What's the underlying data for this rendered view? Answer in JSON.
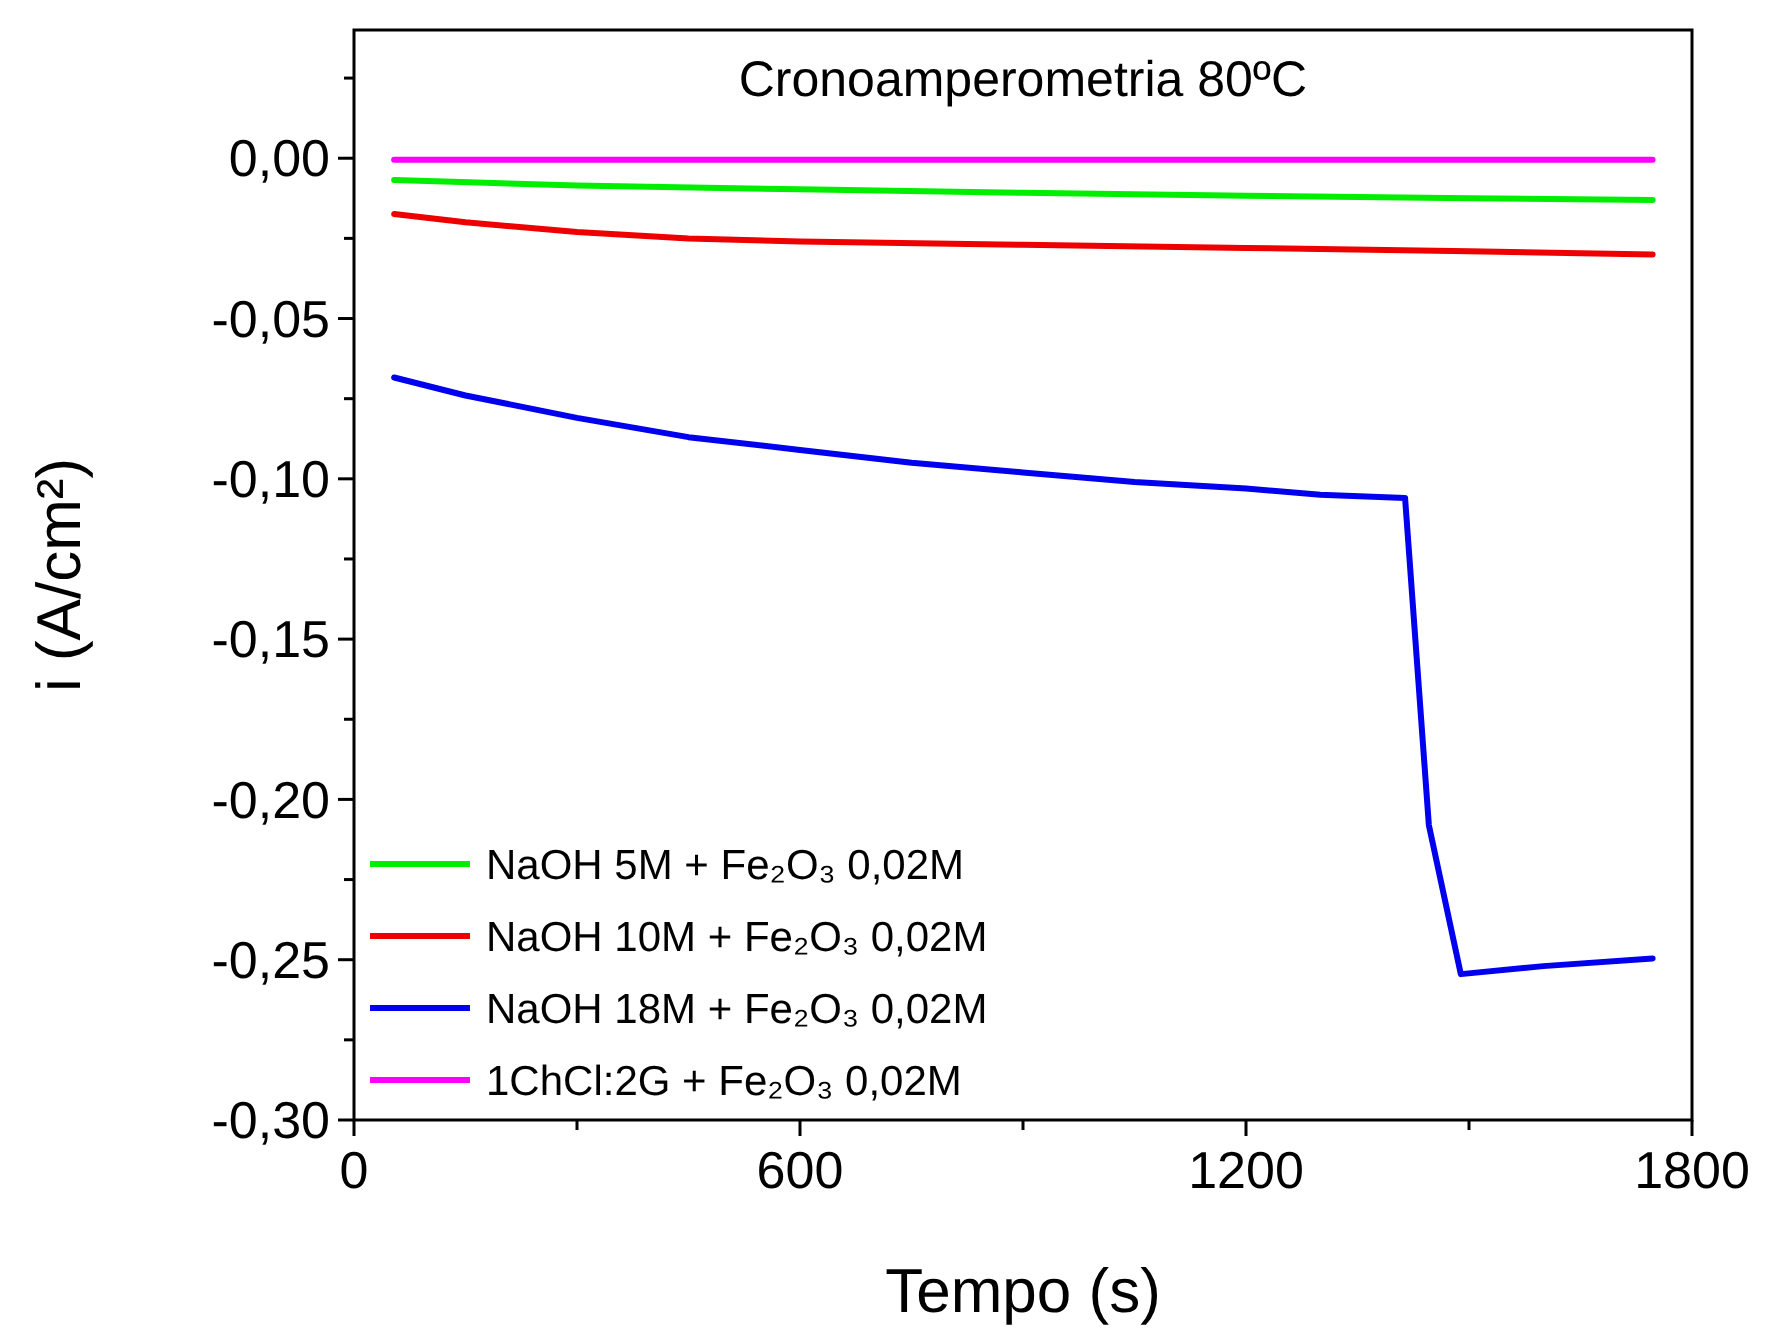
{
  "chart_data": {
    "type": "line",
    "title": "Cronoamperometria 80ºC",
    "xlabel": "Tempo (s)",
    "ylabel": "i (A/cm²)",
    "xlim": [
      0,
      1800
    ],
    "xticks": [
      0,
      600,
      1200,
      1800
    ],
    "ylim": [
      -0.3,
      0.04
    ],
    "yticks": [
      {
        "value": -0.3,
        "label": "-0,30"
      },
      {
        "value": -0.25,
        "label": "-0,25"
      },
      {
        "value": -0.2,
        "label": "-0,20"
      },
      {
        "value": -0.15,
        "label": "-0,15"
      },
      {
        "value": -0.1,
        "label": "-0,10"
      },
      {
        "value": -0.05,
        "label": "-0,05"
      },
      {
        "value": 0,
        "label": "0,00"
      }
    ],
    "grid": false,
    "legend": "bottom left",
    "line_style": "solid",
    "series": [
      {
        "name": "NaOH 5M + Fe₂O₃ 0,02M",
        "color": "#00ee00",
        "x": [
          54,
          300,
          600,
          900,
          1200,
          1500,
          1747
        ],
        "values": [
          -0.0068,
          -0.0085,
          -0.0097,
          -0.0108,
          -0.0117,
          -0.0125,
          -0.013
        ]
      },
      {
        "name": "NaOH 10M + Fe₂O₃ 0,02M",
        "color": "#ee0000",
        "x": [
          54,
          150,
          300,
          450,
          600,
          900,
          1200,
          1500,
          1747
        ],
        "values": [
          -0.0174,
          -0.02,
          -0.023,
          -0.025,
          -0.026,
          -0.027,
          -0.028,
          -0.029,
          -0.03
        ]
      },
      {
        "name": "NaOH 18M + Fe₂O₃ 0,02M",
        "color": "#0000ee",
        "x": [
          54,
          150,
          300,
          450,
          600,
          750,
          900,
          1050,
          1200,
          1300,
          1414,
          1446,
          1489,
          1600,
          1747
        ],
        "values": [
          -0.0684,
          -0.074,
          -0.081,
          -0.087,
          -0.091,
          -0.095,
          -0.098,
          -0.101,
          -0.103,
          -0.105,
          -0.106,
          -0.208,
          -0.2545,
          -0.252,
          -0.2496
        ]
      },
      {
        "name": "1ChCl:2G + Fe₂O₃ 0,02M",
        "color": "#ff00ff",
        "x": [
          54,
          600,
          1200,
          1747
        ],
        "values": [
          -0.0005,
          -0.0005,
          -0.0005,
          -0.0005
        ]
      }
    ]
  }
}
